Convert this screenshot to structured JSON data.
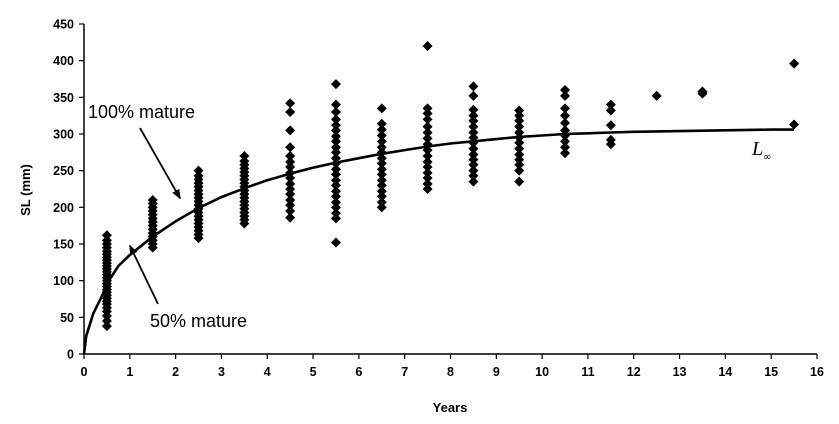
{
  "chart_data": {
    "type": "scatter",
    "xlabel": "Years",
    "ylabel": "SL (mm)",
    "xlim": [
      0,
      16
    ],
    "ylim": [
      0,
      450
    ],
    "x_ticks": [
      0,
      1,
      2,
      3,
      4,
      5,
      6,
      7,
      8,
      9,
      10,
      11,
      12,
      13,
      14,
      15,
      16
    ],
    "y_ticks": [
      0,
      50,
      100,
      150,
      200,
      250,
      300,
      350,
      400,
      450
    ],
    "grid": false,
    "legend": "none",
    "marker": "diamond",
    "color": "#000000",
    "points_by_age": [
      {
        "x": 0.5,
        "y": [
          38,
          45,
          52,
          58,
          63,
          68,
          72,
          76,
          80,
          84,
          88,
          92,
          96,
          100,
          104,
          108,
          112,
          116,
          120,
          124,
          128,
          132,
          136,
          140,
          145,
          150,
          155,
          162
        ]
      },
      {
        "x": 1.5,
        "y": [
          145,
          150,
          155,
          160,
          165,
          170,
          175,
          180,
          185,
          190,
          195,
          200,
          205,
          210
        ]
      },
      {
        "x": 2.5,
        "y": [
          158,
          163,
          168,
          173,
          178,
          183,
          188,
          193,
          198,
          203,
          208,
          213,
          218,
          223,
          228,
          233,
          238,
          243,
          250
        ]
      },
      {
        "x": 3.5,
        "y": [
          178,
          183,
          188,
          193,
          198,
          203,
          208,
          213,
          218,
          223,
          228,
          233,
          238,
          243,
          248,
          253,
          258,
          263,
          270
        ]
      },
      {
        "x": 4.5,
        "y": [
          186,
          195,
          203,
          210,
          218,
          225,
          232,
          240,
          247,
          255,
          262,
          270,
          282,
          305,
          330,
          342
        ]
      },
      {
        "x": 5.5,
        "y": [
          152,
          185,
          192,
          200,
          207,
          215,
          222,
          230,
          237,
          245,
          252,
          260,
          267,
          275,
          282,
          290,
          297,
          305,
          312,
          320,
          330,
          340,
          368
        ]
      },
      {
        "x": 6.5,
        "y": [
          200,
          207,
          215,
          222,
          230,
          237,
          245,
          252,
          260,
          267,
          275,
          282,
          290,
          298,
          306,
          314,
          335
        ]
      },
      {
        "x": 7.5,
        "y": [
          225,
          232,
          240,
          247,
          255,
          262,
          270,
          278,
          286,
          294,
          302,
          310,
          320,
          328,
          335,
          420
        ]
      },
      {
        "x": 8.5,
        "y": [
          235,
          243,
          250,
          258,
          265,
          272,
          280,
          288,
          295,
          302,
          310,
          318,
          325,
          333,
          352,
          365
        ]
      },
      {
        "x": 9.5,
        "y": [
          235,
          250,
          258,
          265,
          272,
          280,
          288,
          295,
          302,
          310,
          318,
          325,
          332
        ]
      },
      {
        "x": 10.5,
        "y": [
          274,
          282,
          290,
          298,
          305,
          315,
          325,
          335,
          352,
          360
        ]
      },
      {
        "x": 11.5,
        "y": [
          286,
          292,
          312,
          332,
          340
        ]
      },
      {
        "x": 12.5,
        "y": [
          352
        ]
      },
      {
        "x": 13.5,
        "y": [
          355,
          358
        ]
      },
      {
        "x": 15.5,
        "y": [
          313,
          396
        ]
      }
    ],
    "curve": {
      "label": "L∞",
      "points": [
        [
          0.05,
          25
        ],
        [
          0.2,
          55
        ],
        [
          0.4,
          80
        ],
        [
          0.5,
          96
        ],
        [
          0.75,
          120
        ],
        [
          1,
          135
        ],
        [
          1.5,
          160
        ],
        [
          2,
          181
        ],
        [
          2.5,
          199
        ],
        [
          3,
          214
        ],
        [
          3.5,
          226
        ],
        [
          4,
          237
        ],
        [
          4.5,
          246
        ],
        [
          5,
          254
        ],
        [
          5.5,
          261
        ],
        [
          6,
          267
        ],
        [
          6.5,
          273
        ],
        [
          7,
          278
        ],
        [
          7.5,
          283
        ],
        [
          8,
          287
        ],
        [
          8.5,
          290
        ],
        [
          9,
          293
        ],
        [
          9.5,
          296
        ],
        [
          10,
          298
        ],
        [
          10.5,
          300
        ],
        [
          11,
          301
        ],
        [
          11.5,
          302
        ],
        [
          12,
          303
        ],
        [
          13,
          304
        ],
        [
          14,
          305
        ],
        [
          15,
          306
        ],
        [
          15.5,
          306
        ]
      ]
    },
    "annotations": [
      {
        "text": "100% mature",
        "text_x": 1.7,
        "text_y": 335,
        "arrow_to": [
          2.1,
          212
        ]
      },
      {
        "text": "50% mature",
        "text_x": 3.0,
        "text_y": 45,
        "arrow_to": [
          1.0,
          148
        ]
      }
    ]
  }
}
